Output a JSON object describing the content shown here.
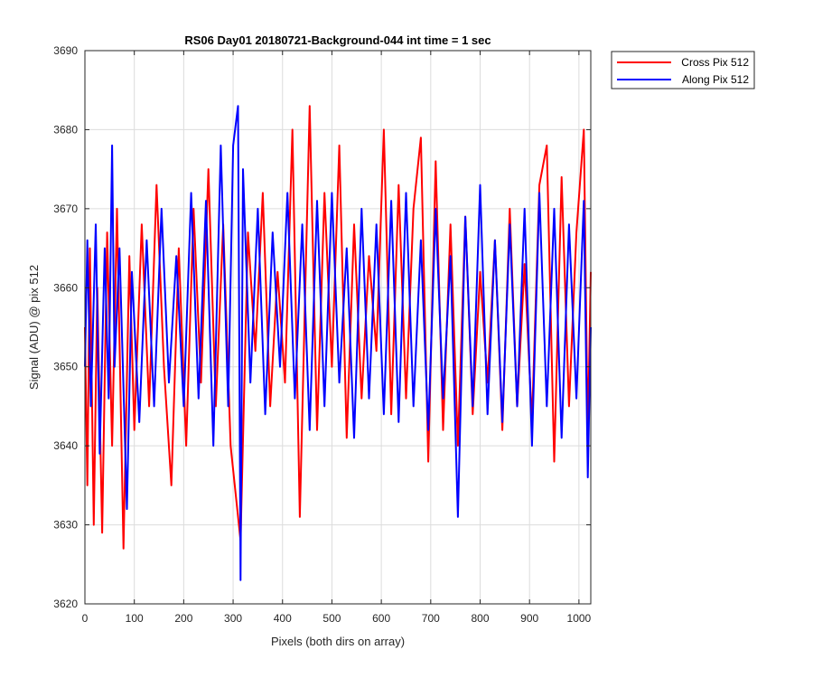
{
  "chart_data": {
    "type": "line",
    "title": "RS06 Day01 20180721-Background-044 int time = 1 sec",
    "xlabel": "Pixels (both dirs on array)",
    "ylabel": "Signal (ADU) @ pix 512",
    "xlim": [
      0,
      1024
    ],
    "ylim": [
      3620,
      3690
    ],
    "xticks": [
      0,
      100,
      200,
      300,
      400,
      500,
      600,
      700,
      800,
      900,
      1000
    ],
    "yticks": [
      3620,
      3630,
      3640,
      3650,
      3660,
      3670,
      3680,
      3690
    ],
    "grid": true,
    "legend_position": "outside top-right",
    "series": [
      {
        "name": "Cross Pix 512",
        "color": "#ff0000",
        "x": [
          0,
          5,
          10,
          18,
          25,
          35,
          45,
          55,
          65,
          78,
          90,
          100,
          115,
          130,
          145,
          160,
          175,
          190,
          205,
          220,
          235,
          250,
          265,
          280,
          295,
          315,
          330,
          345,
          360,
          375,
          390,
          405,
          420,
          435,
          455,
          470,
          485,
          500,
          515,
          530,
          545,
          560,
          575,
          590,
          605,
          620,
          635,
          650,
          665,
          680,
          695,
          710,
          725,
          740,
          755,
          770,
          785,
          800,
          815,
          830,
          845,
          860,
          875,
          890,
          905,
          920,
          935,
          950,
          965,
          980,
          995,
          1010,
          1018,
          1024
        ],
        "y": [
          3655,
          3635,
          3665,
          3630,
          3660,
          3629,
          3667,
          3640,
          3670,
          3627,
          3664,
          3642,
          3668,
          3645,
          3673,
          3650,
          3635,
          3665,
          3640,
          3670,
          3648,
          3675,
          3645,
          3668,
          3640,
          3628,
          3667,
          3652,
          3672,
          3645,
          3662,
          3648,
          3680,
          3631,
          3683,
          3642,
          3672,
          3650,
          3678,
          3641,
          3668,
          3646,
          3664,
          3652,
          3680,
          3644,
          3673,
          3646,
          3670,
          3679,
          3638,
          3676,
          3642,
          3668,
          3640,
          3669,
          3644,
          3662,
          3648,
          3666,
          3642,
          3670,
          3645,
          3663,
          3643,
          3673,
          3678,
          3638,
          3674,
          3645,
          3667,
          3680,
          3641,
          3662
        ]
      },
      {
        "name": "Along Pix 512",
        "color": "#0000ff",
        "x": [
          0,
          5,
          12,
          22,
          30,
          40,
          48,
          55,
          60,
          70,
          85,
          95,
          110,
          125,
          140,
          155,
          170,
          185,
          200,
          215,
          230,
          245,
          260,
          275,
          290,
          300,
          310,
          315,
          320,
          335,
          350,
          365,
          380,
          395,
          410,
          425,
          440,
          455,
          470,
          485,
          500,
          515,
          530,
          545,
          560,
          575,
          590,
          605,
          620,
          635,
          650,
          665,
          680,
          695,
          710,
          725,
          740,
          755,
          770,
          785,
          800,
          815,
          830,
          845,
          860,
          875,
          890,
          905,
          920,
          935,
          950,
          965,
          980,
          995,
          1010,
          1018,
          1024
        ],
        "y": [
          3650,
          3666,
          3645,
          3668,
          3639,
          3665,
          3646,
          3678,
          3650,
          3665,
          3632,
          3662,
          3643,
          3666,
          3645,
          3670,
          3648,
          3664,
          3645,
          3672,
          3646,
          3671,
          3640,
          3678,
          3645,
          3678,
          3683,
          3623,
          3675,
          3648,
          3670,
          3644,
          3667,
          3650,
          3672,
          3646,
          3668,
          3642,
          3671,
          3645,
          3672,
          3648,
          3665,
          3641,
          3670,
          3646,
          3668,
          3644,
          3671,
          3643,
          3672,
          3645,
          3666,
          3642,
          3670,
          3646,
          3664,
          3631,
          3669,
          3645,
          3673,
          3644,
          3666,
          3643,
          3668,
          3645,
          3670,
          3640,
          3672,
          3645,
          3670,
          3641,
          3668,
          3646,
          3671,
          3636,
          3655
        ]
      }
    ]
  }
}
